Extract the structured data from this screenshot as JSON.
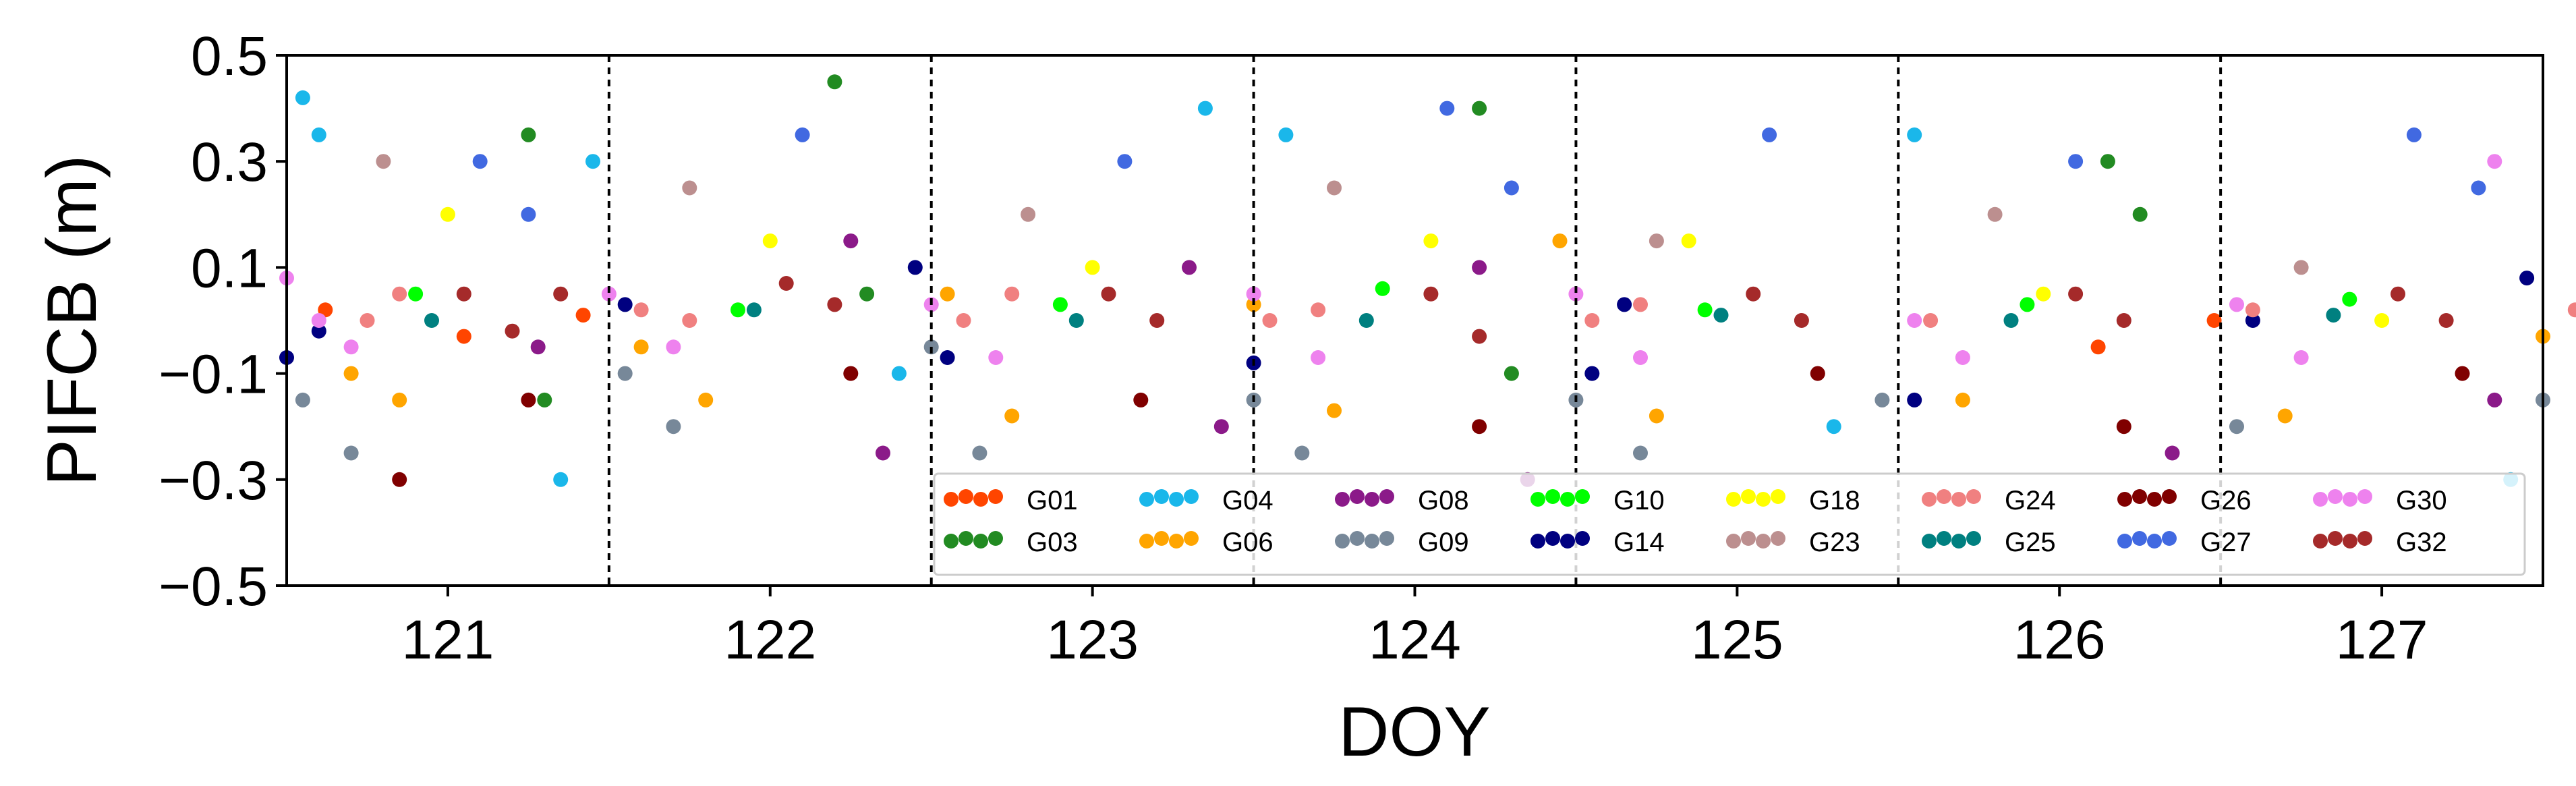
{
  "chart_data": {
    "type": "scatter",
    "title": "",
    "xlabel": "DOY",
    "ylabel": "PIFCB (m)",
    "xlim": [
      120.5,
      127.5
    ],
    "ylim": [
      -0.5,
      0.5
    ],
    "x_ticks": [
      121,
      122,
      123,
      124,
      125,
      126,
      127
    ],
    "x_tick_labels": [
      "121",
      "122",
      "123",
      "124",
      "125",
      "126",
      "127"
    ],
    "y_ticks": [
      -0.5,
      -0.3,
      -0.1,
      0.1,
      0.3,
      0.5
    ],
    "y_tick_labels": [
      "−0.5",
      "−0.3",
      "−0.1",
      "0.1",
      "0.3",
      "0.5"
    ],
    "day_boundaries": [
      120.5,
      121.5,
      122.5,
      123.5,
      124.5,
      125.5,
      126.5
    ],
    "legend_position": "lower-right",
    "series": [
      {
        "name": "G01",
        "color": "#ff4500",
        "values": [
          [
            120.62,
            0.02
          ],
          [
            121.05,
            -0.03
          ],
          [
            121.42,
            0.01
          ],
          [
            126.12,
            -0.05
          ],
          [
            126.48,
            0.0
          ]
        ]
      },
      {
        "name": "G03",
        "color": "#228b22",
        "values": [
          [
            121.25,
            0.35
          ],
          [
            121.3,
            -0.15
          ],
          [
            122.2,
            0.45
          ],
          [
            122.3,
            0.05
          ],
          [
            124.2,
            0.4
          ],
          [
            124.3,
            -0.1
          ],
          [
            126.15,
            0.3
          ],
          [
            126.25,
            0.2
          ]
        ]
      },
      {
        "name": "G04",
        "color": "#1ab7ea",
        "values": [
          [
            120.55,
            0.42
          ],
          [
            120.6,
            0.35
          ],
          [
            121.35,
            -0.3
          ],
          [
            121.45,
            0.3
          ],
          [
            122.4,
            -0.1
          ],
          [
            123.35,
            0.4
          ],
          [
            123.6,
            0.35
          ],
          [
            125.3,
            -0.2
          ],
          [
            125.55,
            0.35
          ],
          [
            127.4,
            -0.3
          ]
        ]
      },
      {
        "name": "G06",
        "color": "#ffa500",
        "values": [
          [
            120.7,
            -0.1
          ],
          [
            120.85,
            -0.15
          ],
          [
            121.6,
            -0.05
          ],
          [
            121.8,
            -0.15
          ],
          [
            122.55,
            0.05
          ],
          [
            122.75,
            -0.18
          ],
          [
            123.5,
            0.03
          ],
          [
            123.75,
            -0.17
          ],
          [
            124.45,
            0.15
          ],
          [
            124.75,
            -0.18
          ],
          [
            125.7,
            -0.15
          ],
          [
            126.7,
            -0.18
          ],
          [
            127.5,
            -0.03
          ]
        ]
      },
      {
        "name": "G08",
        "color": "#8b1a89",
        "values": [
          [
            121.28,
            -0.05
          ],
          [
            122.25,
            0.15
          ],
          [
            122.35,
            -0.25
          ],
          [
            123.3,
            0.1
          ],
          [
            123.4,
            -0.2
          ],
          [
            124.2,
            0.1
          ],
          [
            124.35,
            -0.3
          ],
          [
            126.35,
            -0.25
          ],
          [
            127.35,
            -0.15
          ]
        ]
      },
      {
        "name": "G09",
        "color": "#778899",
        "values": [
          [
            120.55,
            -0.15
          ],
          [
            120.7,
            -0.25
          ],
          [
            121.55,
            -0.1
          ],
          [
            121.7,
            -0.2
          ],
          [
            122.5,
            -0.05
          ],
          [
            122.65,
            -0.25
          ],
          [
            123.5,
            -0.15
          ],
          [
            123.65,
            -0.25
          ],
          [
            124.5,
            -0.15
          ],
          [
            124.7,
            -0.25
          ],
          [
            125.45,
            -0.15
          ],
          [
            126.55,
            -0.2
          ],
          [
            127.5,
            -0.15
          ]
        ]
      },
      {
        "name": "G10",
        "color": "#00ff00",
        "values": [
          [
            120.9,
            0.05
          ],
          [
            121.9,
            0.02
          ],
          [
            122.9,
            0.03
          ],
          [
            123.9,
            0.06
          ],
          [
            124.9,
            0.02
          ],
          [
            125.9,
            0.03
          ],
          [
            126.9,
            0.04
          ]
        ]
      },
      {
        "name": "G14",
        "color": "#000080",
        "values": [
          [
            120.5,
            -0.07
          ],
          [
            120.6,
            -0.02
          ],
          [
            121.55,
            0.03
          ],
          [
            122.45,
            0.1
          ],
          [
            122.55,
            -0.07
          ],
          [
            123.5,
            -0.08
          ],
          [
            124.55,
            -0.1
          ],
          [
            124.65,
            0.03
          ],
          [
            125.55,
            -0.15
          ],
          [
            126.6,
            0.0
          ],
          [
            127.45,
            0.08
          ]
        ]
      },
      {
        "name": "G18",
        "color": "#ffff00",
        "values": [
          [
            121.0,
            0.2
          ],
          [
            122.0,
            0.15
          ],
          [
            123.0,
            0.1
          ],
          [
            124.05,
            0.15
          ],
          [
            124.85,
            0.15
          ],
          [
            125.95,
            0.05
          ],
          [
            127.0,
            0.0
          ]
        ]
      },
      {
        "name": "G23",
        "color": "#bc8f8f",
        "values": [
          [
            120.8,
            0.3
          ],
          [
            121.75,
            0.25
          ],
          [
            122.8,
            0.2
          ],
          [
            123.75,
            0.25
          ],
          [
            124.75,
            0.15
          ],
          [
            125.8,
            0.2
          ],
          [
            126.75,
            0.1
          ]
        ]
      },
      {
        "name": "G24",
        "color": "#f08080",
        "values": [
          [
            120.75,
            0.0
          ],
          [
            120.85,
            0.05
          ],
          [
            121.6,
            0.02
          ],
          [
            121.75,
            0.0
          ],
          [
            122.6,
            0.0
          ],
          [
            122.75,
            0.05
          ],
          [
            123.55,
            0.0
          ],
          [
            123.7,
            0.02
          ],
          [
            124.55,
            0.0
          ],
          [
            124.7,
            0.03
          ],
          [
            125.6,
            0.0
          ],
          [
            126.6,
            0.02
          ],
          [
            127.6,
            0.02
          ]
        ]
      },
      {
        "name": "G25",
        "color": "#008080",
        "values": [
          [
            120.95,
            0.0
          ],
          [
            121.95,
            0.02
          ],
          [
            122.95,
            0.0
          ],
          [
            123.85,
            0.0
          ],
          [
            124.95,
            0.01
          ],
          [
            125.85,
            0.0
          ],
          [
            126.85,
            0.01
          ]
        ]
      },
      {
        "name": "G26",
        "color": "#800000",
        "values": [
          [
            120.85,
            -0.3
          ],
          [
            121.25,
            -0.15
          ],
          [
            122.25,
            -0.1
          ],
          [
            123.15,
            -0.15
          ],
          [
            124.2,
            -0.2
          ],
          [
            125.25,
            -0.1
          ],
          [
            126.2,
            -0.2
          ],
          [
            127.25,
            -0.1
          ]
        ]
      },
      {
        "name": "G27",
        "color": "#4169e1",
        "values": [
          [
            121.1,
            0.3
          ],
          [
            121.25,
            0.2
          ],
          [
            122.1,
            0.35
          ],
          [
            123.1,
            0.3
          ],
          [
            124.1,
            0.4
          ],
          [
            124.3,
            0.25
          ],
          [
            125.1,
            0.35
          ],
          [
            126.05,
            0.3
          ],
          [
            127.1,
            0.35
          ],
          [
            127.3,
            0.25
          ]
        ]
      },
      {
        "name": "G30",
        "color": "#ee82ee",
        "values": [
          [
            120.5,
            0.08
          ],
          [
            120.6,
            0.0
          ],
          [
            120.7,
            -0.05
          ],
          [
            121.5,
            0.05
          ],
          [
            121.7,
            -0.05
          ],
          [
            122.5,
            0.03
          ],
          [
            122.7,
            -0.07
          ],
          [
            123.5,
            0.05
          ],
          [
            123.7,
            -0.07
          ],
          [
            124.5,
            0.05
          ],
          [
            124.7,
            -0.07
          ],
          [
            125.55,
            0.0
          ],
          [
            125.7,
            -0.07
          ],
          [
            126.55,
            0.03
          ],
          [
            126.75,
            -0.07
          ],
          [
            127.35,
            0.3
          ]
        ]
      },
      {
        "name": "G32",
        "color": "#a52a2a",
        "values": [
          [
            121.05,
            0.05
          ],
          [
            121.2,
            -0.02
          ],
          [
            121.35,
            0.05
          ],
          [
            122.05,
            0.07
          ],
          [
            122.2,
            0.03
          ],
          [
            123.05,
            0.05
          ],
          [
            123.2,
            0.0
          ],
          [
            124.05,
            0.05
          ],
          [
            124.2,
            -0.03
          ],
          [
            125.05,
            0.05
          ],
          [
            125.2,
            0.0
          ],
          [
            126.05,
            0.05
          ],
          [
            126.2,
            0.0
          ],
          [
            127.05,
            0.05
          ],
          [
            127.2,
            0.0
          ]
        ]
      }
    ]
  }
}
